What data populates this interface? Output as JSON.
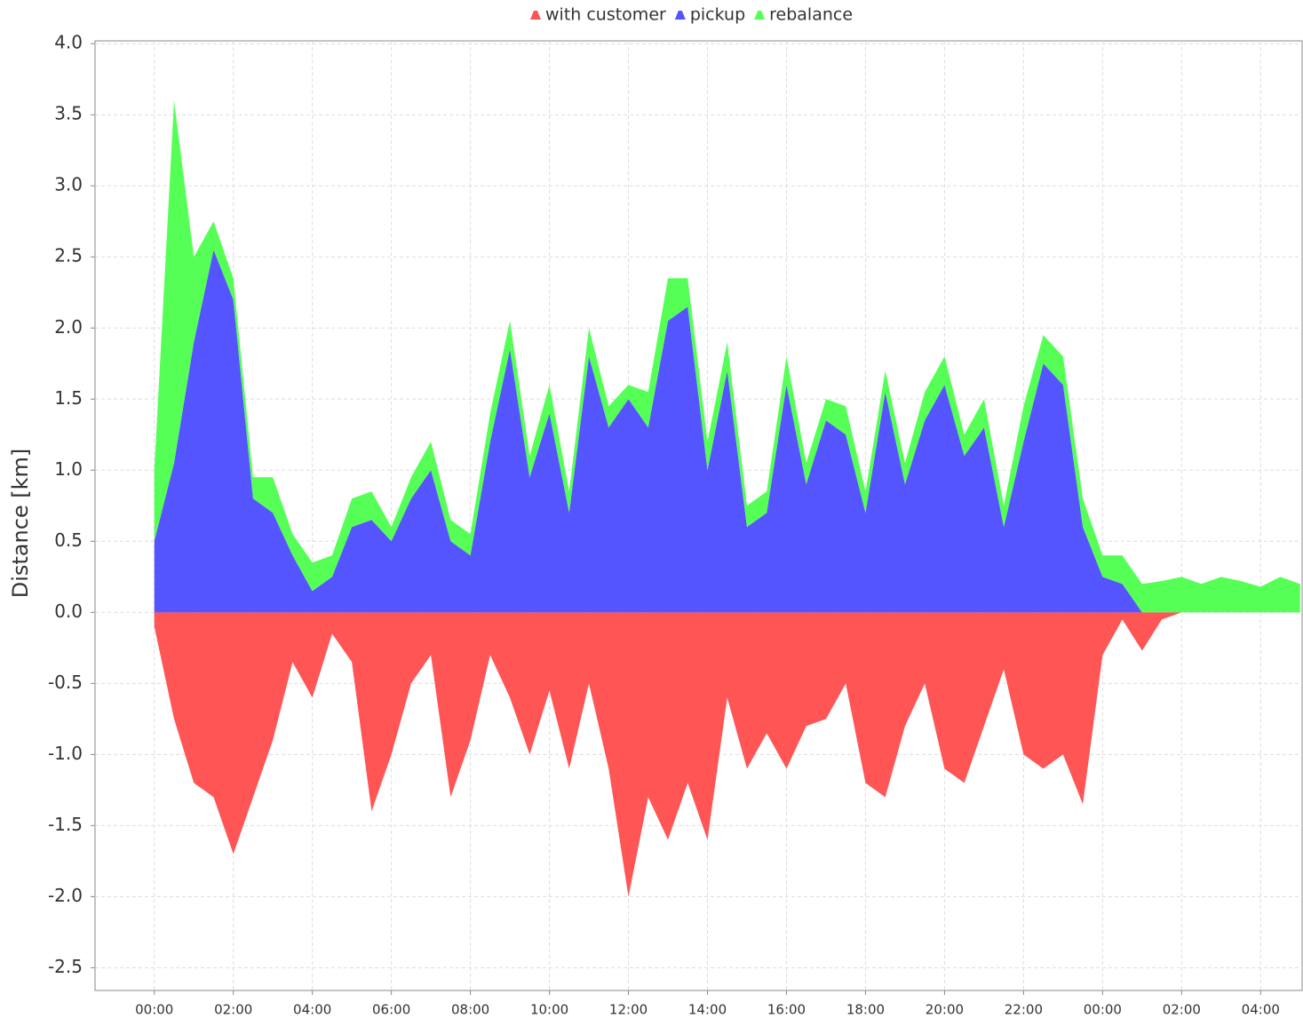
{
  "chart_data": {
    "type": "area",
    "stacked": true,
    "ylabel": "Distance [km]",
    "x": [
      0,
      0.5,
      1,
      1.5,
      2,
      2.5,
      3,
      3.5,
      4,
      4.5,
      5,
      5.5,
      6,
      6.5,
      7,
      7.5,
      8,
      8.5,
      9,
      9.5,
      10,
      10.5,
      11,
      11.5,
      12,
      12.5,
      13,
      13.5,
      14,
      14.5,
      15,
      15.5,
      16,
      16.5,
      17,
      17.5,
      18,
      18.5,
      19,
      19.5,
      20,
      20.5,
      21,
      21.5,
      22,
      22.5,
      23,
      23.5,
      24,
      24.5,
      25,
      25.5,
      26,
      26.5,
      27,
      27.5,
      28,
      28.5,
      29
    ],
    "series": [
      {
        "name": "with customer",
        "color": "#ff5555",
        "values": [
          -0.1,
          -0.75,
          -1.2,
          -1.3,
          -1.7,
          -1.3,
          -0.9,
          -0.35,
          -0.6,
          -0.15,
          -0.35,
          -1.4,
          -1.0,
          -0.5,
          -0.3,
          -1.3,
          -0.9,
          -0.3,
          -0.6,
          -1.0,
          -0.55,
          -1.1,
          -0.5,
          -1.1,
          -2.0,
          -1.3,
          -1.6,
          -1.2,
          -1.6,
          -0.6,
          -1.1,
          -0.85,
          -1.1,
          -0.8,
          -0.75,
          -0.5,
          -1.2,
          -1.3,
          -0.8,
          -0.5,
          -1.1,
          -1.2,
          -0.8,
          -0.4,
          -1.0,
          -1.1,
          -1.0,
          -1.35,
          -0.3,
          -0.05,
          -0.27,
          -0.05,
          0,
          0,
          0,
          0,
          0,
          0,
          0
        ]
      },
      {
        "name": "pickup",
        "color": "#5555ff",
        "values": [
          0.5,
          1.05,
          1.9,
          2.55,
          2.2,
          0.8,
          0.7,
          0.4,
          0.15,
          0.25,
          0.6,
          0.65,
          0.5,
          0.8,
          1.0,
          0.5,
          0.4,
          1.2,
          1.85,
          0.95,
          1.4,
          0.7,
          1.8,
          1.3,
          1.5,
          1.3,
          2.05,
          2.15,
          1.0,
          1.7,
          0.6,
          0.7,
          1.6,
          0.9,
          1.35,
          1.25,
          0.7,
          1.55,
          0.9,
          1.35,
          1.6,
          1.1,
          1.3,
          0.6,
          1.2,
          1.75,
          1.6,
          0.6,
          0.25,
          0.2,
          0,
          0,
          0,
          0,
          0,
          0,
          0,
          0,
          0
        ]
      },
      {
        "name": "rebalance",
        "color": "#55ff55",
        "values": [
          0.5,
          2.55,
          0.6,
          0.2,
          0.15,
          0.15,
          0.25,
          0.15,
          0.2,
          0.15,
          0.2,
          0.2,
          0.1,
          0.15,
          0.2,
          0.15,
          0.15,
          0.2,
          0.2,
          0.15,
          0.2,
          0.15,
          0.2,
          0.15,
          0.1,
          0.25,
          0.3,
          0.2,
          0.2,
          0.2,
          0.15,
          0.15,
          0.2,
          0.15,
          0.15,
          0.2,
          0.15,
          0.15,
          0.15,
          0.2,
          0.2,
          0.15,
          0.2,
          0.15,
          0.25,
          0.2,
          0.2,
          0.2,
          0.15,
          0.2,
          0.2,
          0.22,
          0.25,
          0.2,
          0.25,
          0.22,
          0.18,
          0.25,
          0.2
        ]
      }
    ],
    "xlim": [
      -1.5,
      29.05
    ],
    "xticks": [
      {
        "value": 0,
        "label": "00:00"
      },
      {
        "value": 2,
        "label": "02:00"
      },
      {
        "value": 4,
        "label": "04:00"
      },
      {
        "value": 6,
        "label": "06:00"
      },
      {
        "value": 8,
        "label": "08:00"
      },
      {
        "value": 10,
        "label": "10:00"
      },
      {
        "value": 12,
        "label": "12:00"
      },
      {
        "value": 14,
        "label": "14:00"
      },
      {
        "value": 16,
        "label": "16:00"
      },
      {
        "value": 18,
        "label": "18:00"
      },
      {
        "value": 20,
        "label": "20:00"
      },
      {
        "value": 22,
        "label": "22:00"
      },
      {
        "value": 24,
        "label": "00:00"
      },
      {
        "value": 26,
        "label": "02:00"
      },
      {
        "value": 28,
        "label": "04:00"
      }
    ],
    "ylim": [
      -2.66,
      4.02
    ],
    "yticks": [
      {
        "value": 4,
        "label": "4.0"
      },
      3.5,
      {
        "value": 3,
        "label": "3.0"
      },
      2.5,
      {
        "value": 2,
        "label": "2.0"
      },
      1.5,
      {
        "value": 1,
        "label": "1.0"
      },
      0.5,
      {
        "value": 0,
        "label": "0.0"
      },
      -0.5,
      {
        "value": -1,
        "label": "-1.0"
      },
      -1.5,
      {
        "value": -2,
        "label": "-2.0"
      },
      -2.5
    ],
    "grid": true,
    "legend": "top"
  }
}
